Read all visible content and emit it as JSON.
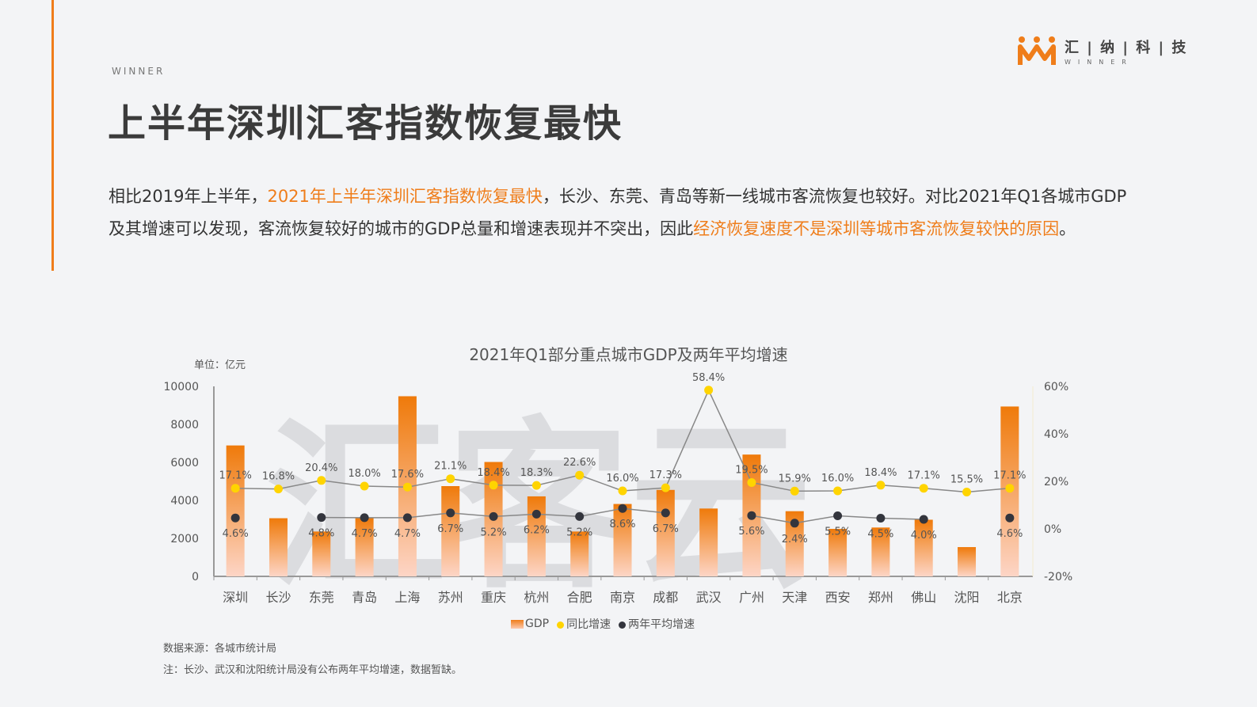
{
  "header": {
    "brand_en": "WINNER",
    "title": "上半年深圳汇客指数恢复最快",
    "paragraph": [
      {
        "text": "相比2019年上半年，",
        "highlight": false
      },
      {
        "text": "2021年上半年深圳汇客指数恢复最快",
        "highlight": true
      },
      {
        "text": "，长沙、东莞、青岛等新一线城市客流恢复也较好。对比2021年Q1各城市GDP及其增速可以发现，客流恢复较好的城市的GDP总量和增速表现并不突出，因此",
        "highlight": false
      },
      {
        "text": "经济恢复速度不是深圳等城市客流恢复较快的原因",
        "highlight": true
      },
      {
        "text": "。",
        "highlight": false
      }
    ],
    "logo_cn": "汇 | 纳 | 科 | 技",
    "logo_en": "WINNER"
  },
  "colors": {
    "accent": "#ef7d1a",
    "yoy": "#ffd400",
    "avg": "#33353d",
    "line": "#888888"
  },
  "chart_data": {
    "type": "bar+line",
    "title": "2021年Q1部分重点城市GDP及两年平均增速",
    "unit_label": "单位：亿元",
    "watermark": "汇客云",
    "categories": [
      "深圳",
      "长沙",
      "东莞",
      "青岛",
      "上海",
      "苏州",
      "重庆",
      "杭州",
      "合肥",
      "南京",
      "成都",
      "武汉",
      "广州",
      "天津",
      "西安",
      "郑州",
      "佛山",
      "沈阳",
      "北京"
    ],
    "left_axis": {
      "min": 0,
      "max": 10000,
      "ticks": [
        "0",
        "2000",
        "4000",
        "6000",
        "8000",
        "10000"
      ]
    },
    "right_axis": {
      "min": -20,
      "max": 60,
      "ticks": [
        "-20%",
        "0%",
        "20%",
        "40%",
        "60%"
      ]
    },
    "series": [
      {
        "name": "GDP",
        "type": "bar",
        "axis": "left",
        "values": [
          6890,
          3060,
          2360,
          3070,
          9480,
          4750,
          6020,
          4210,
          2360,
          3810,
          4550,
          3570,
          6410,
          3430,
          2500,
          2570,
          2980,
          1540,
          8940
        ]
      },
      {
        "name": "同比增速",
        "type": "line",
        "axis": "right",
        "values": [
          17.1,
          16.8,
          20.4,
          18.0,
          17.6,
          21.1,
          18.4,
          18.3,
          22.6,
          16.0,
          17.3,
          58.4,
          19.5,
          15.9,
          16.0,
          18.4,
          17.1,
          15.5,
          17.1
        ],
        "labels": [
          "17.1%",
          "16.8%",
          "20.4%",
          "18.0%",
          "17.6%",
          "21.1%",
          "18.4%",
          "18.3%",
          "22.6%",
          "16.0%",
          "17.3%",
          "58.4%",
          "19.5%",
          "15.9%",
          "16.0%",
          "18.4%",
          "17.1%",
          "15.5%",
          "17.1%"
        ]
      },
      {
        "name": "两年平均增速",
        "type": "line",
        "axis": "right",
        "values": [
          4.6,
          null,
          4.8,
          4.7,
          4.7,
          6.7,
          5.2,
          6.2,
          5.2,
          8.6,
          6.7,
          null,
          5.6,
          2.4,
          5.5,
          4.5,
          4.0,
          null,
          4.6
        ],
        "labels": [
          "4.6%",
          "",
          "4.8%",
          "4.7%",
          "4.7%",
          "6.7%",
          "5.2%",
          "6.2%",
          "5.2%",
          "8.6%",
          "6.7%",
          "",
          "5.6%",
          "2.4%",
          "5.5%",
          "4.5%",
          "4.0%",
          "",
          "4.6%"
        ]
      }
    ],
    "legend_position": "bottom",
    "grid": false
  },
  "footer": {
    "source": "数据来源：各城市统计局",
    "note": "注：长沙、武汉和沈阳统计局没有公布两年平均增速，数据暂缺。"
  }
}
